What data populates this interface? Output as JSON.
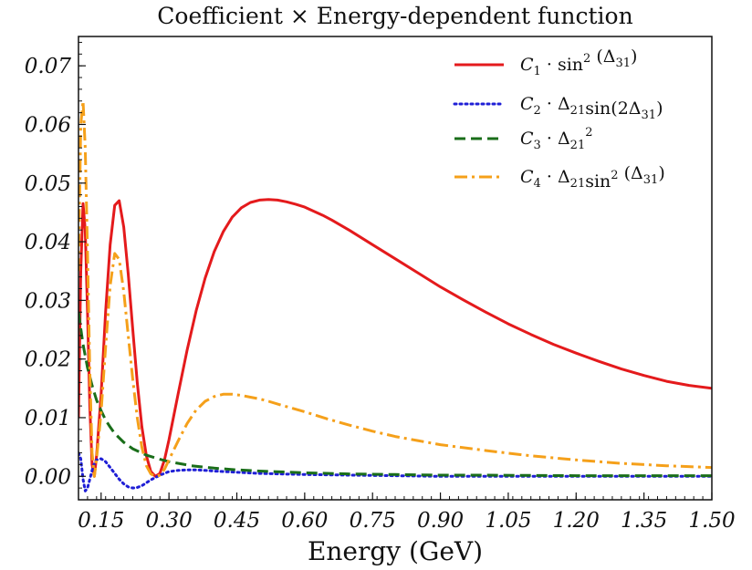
{
  "chart_data": {
    "type": "line",
    "title": "Coefficient × Energy-dependent function",
    "xlabel": "Energy (GeV)",
    "ylabel": "",
    "xlim": [
      0.1,
      1.5
    ],
    "ylim": [
      -0.004,
      0.075
    ],
    "xticks": [
      "0.15",
      "0.30",
      "0.45",
      "0.60",
      "0.75",
      "0.90",
      "1.05",
      "1.20",
      "1.35",
      "1.50"
    ],
    "yticks": [
      "0.00",
      "0.01",
      "0.02",
      "0.03",
      "0.04",
      "0.05",
      "0.06",
      "0.07"
    ],
    "grid": false,
    "legend_position": "top-right",
    "series": [
      {
        "name": "C1 · sin2(Δ31)",
        "color": "#e41a1c",
        "dash": "solid",
        "legend": {
          "c": "C",
          "csub": "1",
          "mid": " · sin",
          "sup": "2",
          "paren": "(Δ",
          "psub": "31",
          "end": ")"
        },
        "x": [
          0.1,
          0.105,
          0.11,
          0.115,
          0.12,
          0.125,
          0.13,
          0.135,
          0.14,
          0.15,
          0.16,
          0.17,
          0.18,
          0.19,
          0.2,
          0.21,
          0.22,
          0.23,
          0.24,
          0.25,
          0.26,
          0.27,
          0.28,
          0.29,
          0.3,
          0.32,
          0.34,
          0.36,
          0.38,
          0.4,
          0.42,
          0.44,
          0.46,
          0.48,
          0.5,
          0.52,
          0.54,
          0.56,
          0.58,
          0.6,
          0.62,
          0.64,
          0.66,
          0.7,
          0.75,
          0.8,
          0.85,
          0.9,
          0.95,
          1.0,
          1.05,
          1.1,
          1.15,
          1.2,
          1.25,
          1.3,
          1.35,
          1.4,
          1.45,
          1.5
        ],
        "y": [
          0.01,
          0.035,
          0.0465,
          0.042,
          0.028,
          0.012,
          0.002,
          0.0,
          0.0035,
          0.014,
          0.028,
          0.0395,
          0.0462,
          0.047,
          0.0425,
          0.0345,
          0.025,
          0.016,
          0.0085,
          0.0035,
          0.0008,
          0.0,
          0.0005,
          0.0028,
          0.0062,
          0.014,
          0.0215,
          0.0282,
          0.0338,
          0.0383,
          0.0417,
          0.0442,
          0.0458,
          0.0467,
          0.0471,
          0.0472,
          0.0471,
          0.0468,
          0.0464,
          0.0459,
          0.0452,
          0.0445,
          0.0437,
          0.0419,
          0.0395,
          0.0371,
          0.0347,
          0.0323,
          0.0301,
          0.028,
          0.026,
          0.0242,
          0.0225,
          0.021,
          0.0196,
          0.0183,
          0.0172,
          0.0162,
          0.0155,
          0.015
        ]
      },
      {
        "name": "C2 · Δ21sin(2Δ31)",
        "color": "#1f1fd6",
        "dash": "dot",
        "legend": {
          "c": "C",
          "csub": "2",
          "mid": " · Δ",
          "midsub": "21",
          "tail": "sin(2Δ",
          "tsub": "31",
          "end": ")"
        },
        "x": [
          0.1,
          0.105,
          0.11,
          0.115,
          0.12,
          0.125,
          0.13,
          0.135,
          0.14,
          0.15,
          0.16,
          0.17,
          0.18,
          0.19,
          0.2,
          0.21,
          0.22,
          0.23,
          0.24,
          0.25,
          0.26,
          0.27,
          0.28,
          0.29,
          0.3,
          0.32,
          0.34,
          0.36,
          0.38,
          0.4,
          0.45,
          0.5,
          0.55,
          0.6,
          0.7,
          0.8,
          0.9,
          1.0,
          1.2,
          1.5
        ],
        "y": [
          0.004,
          0.003,
          -0.0005,
          -0.0025,
          -0.002,
          -0.0005,
          0.001,
          0.0022,
          0.0028,
          0.003,
          0.0025,
          0.0015,
          0.0005,
          -0.0005,
          -0.0013,
          -0.0018,
          -0.002,
          -0.0019,
          -0.0016,
          -0.0011,
          -0.0006,
          -0.0002,
          0.0002,
          0.0005,
          0.0008,
          0.001,
          0.0011,
          0.0011,
          0.001,
          0.0009,
          0.0007,
          0.0005,
          0.0004,
          0.0003,
          0.0002,
          0.0001,
          0.0,
          0.0,
          0.0,
          0.0
        ]
      },
      {
        "name": "C3 · Δ21^2",
        "color": "#1a6e1a",
        "dash": "dash",
        "legend": {
          "c": "C",
          "csub": "3",
          "mid": " · Δ",
          "midsub": "21",
          "midsup": "2"
        },
        "x": [
          0.1,
          0.11,
          0.12,
          0.13,
          0.14,
          0.15,
          0.16,
          0.17,
          0.18,
          0.2,
          0.22,
          0.25,
          0.28,
          0.3,
          0.35,
          0.4,
          0.45,
          0.5,
          0.6,
          0.7,
          0.8,
          0.9,
          1.0,
          1.2,
          1.5
        ],
        "y": [
          0.028,
          0.0225,
          0.0185,
          0.0155,
          0.013,
          0.0112,
          0.0096,
          0.0084,
          0.0073,
          0.0058,
          0.0047,
          0.0036,
          0.0029,
          0.0025,
          0.0018,
          0.0014,
          0.0011,
          0.0009,
          0.0006,
          0.0004,
          0.0003,
          0.0002,
          0.0002,
          0.0001,
          0.0001
        ]
      },
      {
        "name": "C4 · Δ21sin2(Δ31)",
        "color": "#f5a01a",
        "dash": "dashdot",
        "legend": {
          "c": "C",
          "csub": "4",
          "mid": " · Δ",
          "midsub": "21",
          "tail": "sin",
          "sup": "2",
          "paren": "(Δ",
          "psub": "31",
          "end": ")"
        },
        "x": [
          0.1,
          0.105,
          0.11,
          0.115,
          0.12,
          0.125,
          0.13,
          0.135,
          0.14,
          0.15,
          0.16,
          0.17,
          0.18,
          0.19,
          0.2,
          0.21,
          0.22,
          0.23,
          0.24,
          0.25,
          0.26,
          0.27,
          0.28,
          0.29,
          0.3,
          0.32,
          0.34,
          0.36,
          0.38,
          0.4,
          0.42,
          0.44,
          0.46,
          0.48,
          0.5,
          0.52,
          0.55,
          0.6,
          0.65,
          0.7,
          0.75,
          0.8,
          0.85,
          0.9,
          1.0,
          1.1,
          1.2,
          1.3,
          1.4,
          1.5
        ],
        "y": [
          0.035,
          0.06,
          0.064,
          0.056,
          0.038,
          0.018,
          0.004,
          0.0,
          0.003,
          0.011,
          0.022,
          0.0325,
          0.038,
          0.037,
          0.0315,
          0.024,
          0.0165,
          0.01,
          0.005,
          0.0018,
          0.0004,
          0.0,
          0.0002,
          0.0012,
          0.0028,
          0.006,
          0.009,
          0.0113,
          0.0128,
          0.0136,
          0.014,
          0.014,
          0.0138,
          0.0135,
          0.0132,
          0.0128,
          0.0121,
          0.011,
          0.0098,
          0.0087,
          0.0077,
          0.0068,
          0.0061,
          0.0054,
          0.0044,
          0.0035,
          0.0028,
          0.0022,
          0.0018,
          0.0015
        ]
      }
    ]
  }
}
